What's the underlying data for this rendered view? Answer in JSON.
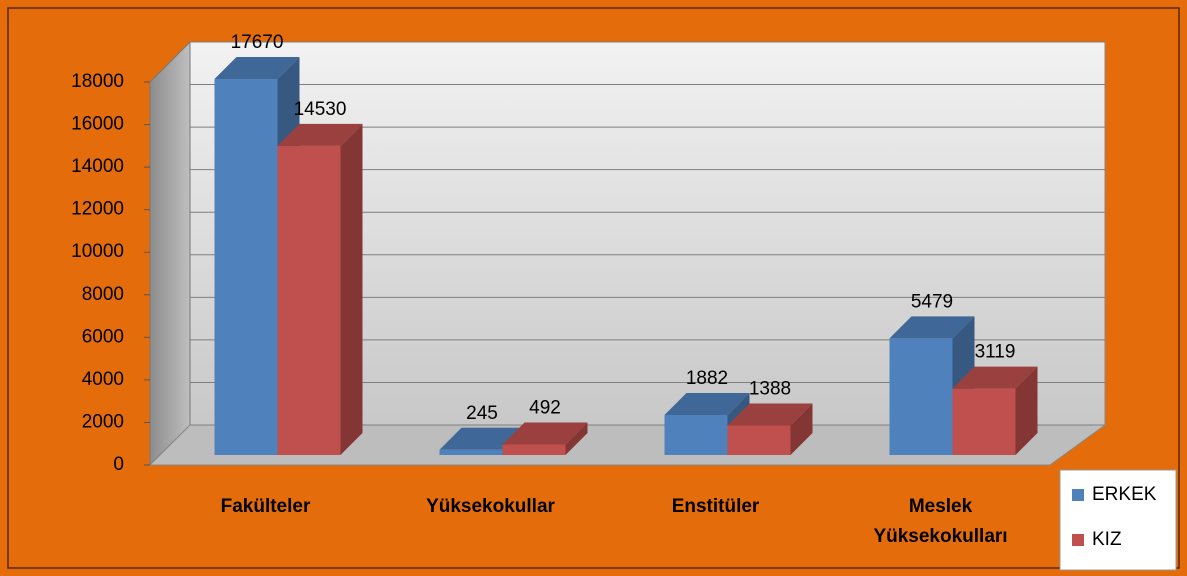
{
  "chart_data": {
    "type": "bar3d",
    "categories": [
      "Fakülteler",
      "Yüksekokullar",
      "Enstitüler",
      "Meslek Yüksekokulları"
    ],
    "series": [
      {
        "name": "ERKEK",
        "color": "#4F81BD",
        "values": [
          17670,
          245,
          1882,
          5479
        ]
      },
      {
        "name": "KIZ",
        "color": "#C0504D",
        "values": [
          14530,
          492,
          1388,
          3119
        ]
      }
    ],
    "ylim": [
      0,
      18000
    ],
    "yticks": [
      0,
      2000,
      4000,
      6000,
      8000,
      10000,
      12000,
      14000,
      16000,
      18000
    ],
    "grid": true
  }
}
